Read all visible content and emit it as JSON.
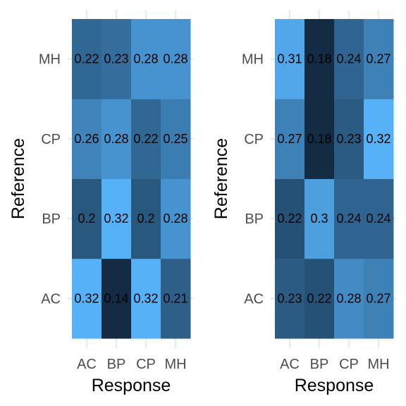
{
  "chart_data": [
    {
      "type": "heatmap",
      "title": "",
      "xlabel": "Response",
      "ylabel": "Reference",
      "x_categories": [
        "AC",
        "BP",
        "CP",
        "MH"
      ],
      "y_categories": [
        "AC",
        "BP",
        "CP",
        "MH"
      ],
      "values": [
        [
          0.32,
          0.14,
          0.32,
          0.21
        ],
        [
          0.2,
          0.32,
          0.2,
          0.28
        ],
        [
          0.26,
          0.28,
          0.22,
          0.25
        ],
        [
          0.22,
          0.23,
          0.28,
          0.28
        ]
      ],
      "value_range": [
        0.14,
        0.32
      ],
      "color_low": "#132B43",
      "color_high": "#56B1F7",
      "legend": "none",
      "grid": true
    },
    {
      "type": "heatmap",
      "title": "",
      "xlabel": "Response",
      "ylabel": "Reference",
      "x_categories": [
        "AC",
        "BP",
        "CP",
        "MH"
      ],
      "y_categories": [
        "AC",
        "BP",
        "CP",
        "MH"
      ],
      "values": [
        [
          0.23,
          0.22,
          0.28,
          0.27
        ],
        [
          0.22,
          0.3,
          0.24,
          0.24
        ],
        [
          0.27,
          0.18,
          0.23,
          0.32
        ],
        [
          0.31,
          0.18,
          0.24,
          0.27
        ]
      ],
      "value_range": [
        0.18,
        0.32
      ],
      "color_low": "#132B43",
      "color_high": "#56B1F7",
      "legend": "none",
      "grid": true
    }
  ]
}
